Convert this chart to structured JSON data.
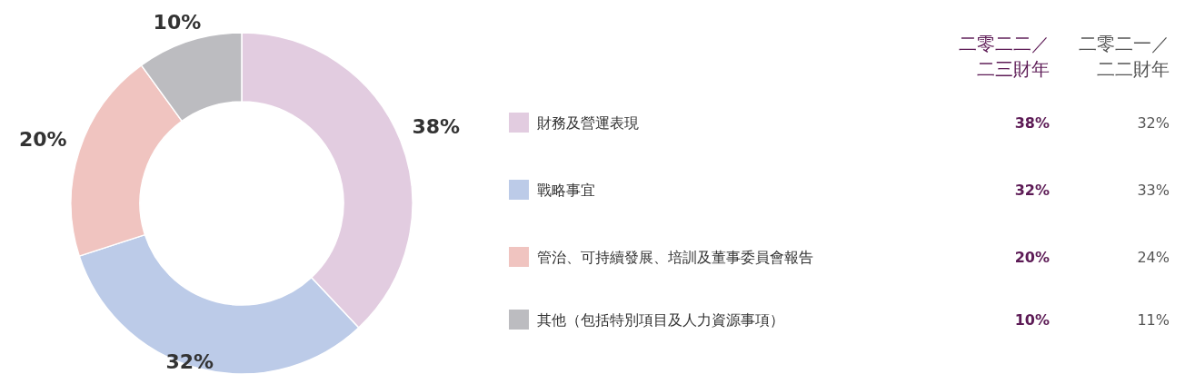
{
  "chart_data": [
    {
      "type": "donut",
      "categories": [
        "財務及營運表現",
        "戰略事宜",
        "管治、可持續發展、培訓及董事委員會報告",
        "其他（包括特別項目及人力資源事項）"
      ],
      "colors": [
        "#e2cce0",
        "#bccbe8",
        "#f0c4c0",
        "#bcbcc0"
      ],
      "values": [
        38,
        32,
        20,
        10
      ],
      "value_labels": [
        "38%",
        "32%",
        "20%",
        "10%"
      ],
      "legend": "right"
    },
    {
      "type": "other",
      "categories": [
        "二零二二／二三財年",
        "二零二一／二二財年"
      ],
      "colors": [
        "#5c1a55",
        "#555555"
      ],
      "annotations": [
        "38%",
        "32%",
        "20%",
        "10%",
        "32%",
        "33%",
        "24%",
        "11%"
      ]
    }
  ]
}
